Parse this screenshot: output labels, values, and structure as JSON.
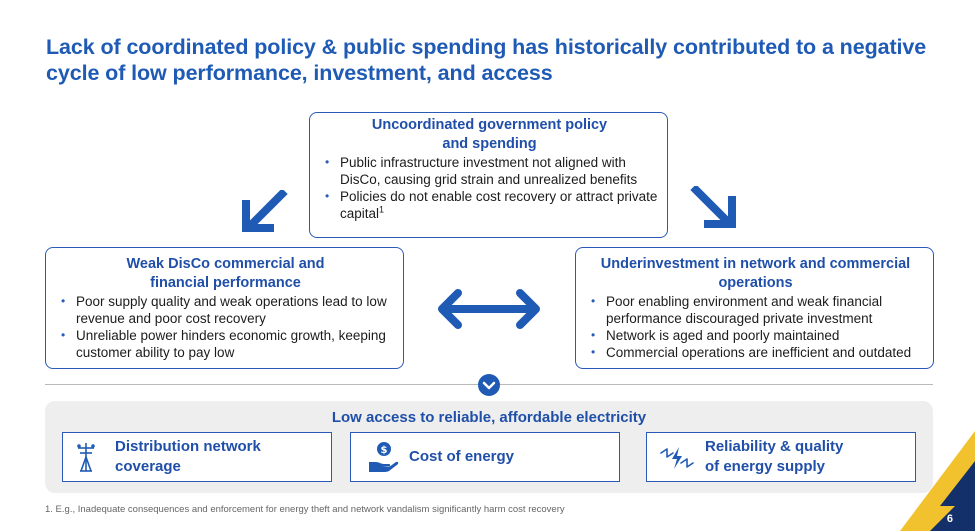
{
  "title": "Lack of coordinated policy & public spending has historically contributed to a negative cycle of low performance, investment, and access",
  "top_box": {
    "title_line1": "Uncoordinated government policy",
    "title_line2": "and spending",
    "bullets": [
      "Public infrastructure investment not aligned with DisCo, causing grid strain and unrealized benefits",
      "Policies do not enable cost recovery or attract private capital"
    ],
    "footnote_marker": "1"
  },
  "left_box": {
    "title_line1": "Weak DisCo commercial and",
    "title_line2": "financial performance",
    "bullets": [
      "Poor supply quality and weak operations lead to low revenue and poor cost recovery",
      "Unreliable power hinders economic growth, keeping customer ability  to pay low"
    ]
  },
  "right_box": {
    "title_line1": "Underinvestment in network and commercial",
    "title_line2": "operations",
    "bullets": [
      "Poor enabling environment and weak financial performance discouraged private investment",
      "Network is aged and poorly maintained",
      "Commercial operations are inefficient and outdated"
    ]
  },
  "bottom_panel": {
    "title": "Low access to reliable, affordable electricity",
    "cards": [
      {
        "line1": "Distribution network",
        "line2": "coverage",
        "icon": "power-pole-icon"
      },
      {
        "line1": "Cost of energy",
        "line2": "",
        "icon": "hand-coin-icon"
      },
      {
        "line1": "Reliability & quality",
        "line2": "of energy supply",
        "icon": "lightning-reliability-icon"
      }
    ]
  },
  "footnote": "1. E.g., Inadequate consequences and enforcement for energy theft and network vandalism significantly harm cost recovery",
  "page_number": "6",
  "colors": {
    "primary_blue": "#1f5bb5",
    "box_border": "#2a5bb8",
    "accent_yellow": "#f2c12e",
    "navy": "#14306b"
  }
}
